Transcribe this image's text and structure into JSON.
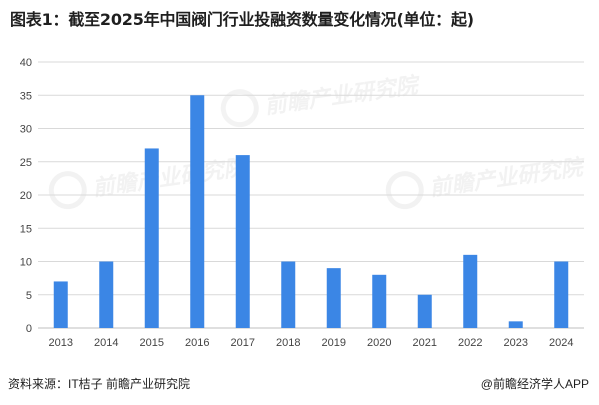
{
  "title": "图表1：截至2025年中国阀门行业投融资数量变化情况(单位：起)",
  "source": "资料来源：IT桔子 前瞻产业研究院",
  "brand": "@前瞻经济学人APP",
  "watermark": "前瞻产业研究院",
  "chart_data": {
    "type": "bar",
    "categories": [
      "2013",
      "2014",
      "2015",
      "2016",
      "2017",
      "2018",
      "2019",
      "2020",
      "2021",
      "2022",
      "2023",
      "2024"
    ],
    "values": [
      7,
      10,
      27,
      35,
      26,
      10,
      9,
      8,
      5,
      11,
      1,
      10
    ],
    "ylim": [
      0,
      40
    ],
    "yticks": [
      0,
      5,
      10,
      15,
      20,
      25,
      30,
      35,
      40
    ],
    "xlabel": "",
    "ylabel": "",
    "grid": true,
    "legend": "none",
    "bar_color": "#3b86e5",
    "grid_color": "#d9d9d9"
  }
}
